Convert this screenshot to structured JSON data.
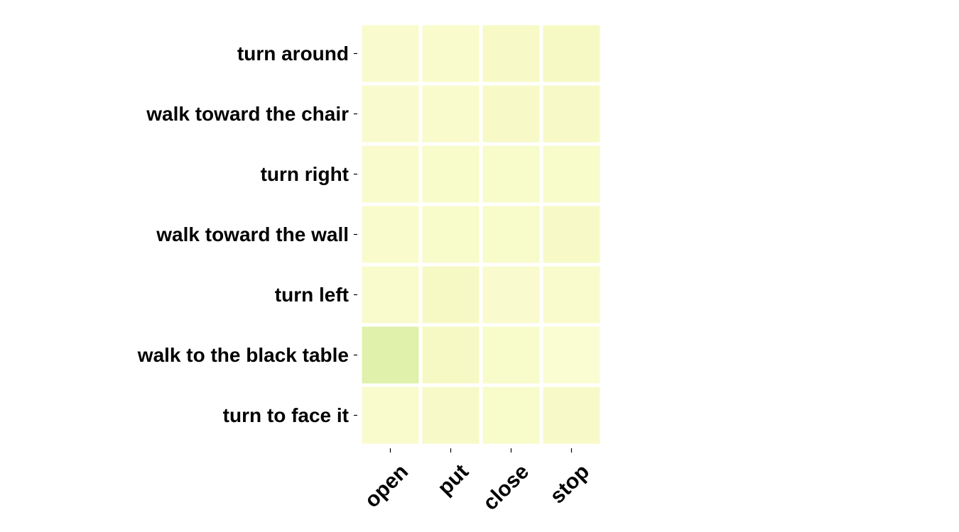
{
  "chart_data": {
    "type": "heatmap",
    "rows": [
      "turn around",
      "walk toward the chair",
      "turn right",
      "walk toward the wall",
      "turn left",
      "walk to the black table",
      "turn to face it"
    ],
    "columns": [
      "open",
      "put",
      "close",
      "stop"
    ],
    "values": [
      [
        0.1,
        0.12,
        0.2,
        0.22
      ],
      [
        0.1,
        0.12,
        0.2,
        0.2
      ],
      [
        0.12,
        0.15,
        0.15,
        0.15
      ],
      [
        0.12,
        0.15,
        0.15,
        0.2
      ],
      [
        0.12,
        0.22,
        0.1,
        0.12
      ],
      [
        0.55,
        0.22,
        0.15,
        0.05
      ],
      [
        0.12,
        0.18,
        0.15,
        0.18
      ]
    ],
    "colormap": [
      "#fbfdd6",
      "#f6f9c2",
      "#e8f4b0",
      "#c2e699",
      "#9fd48b"
    ],
    "value_range": [
      0,
      1
    ]
  }
}
